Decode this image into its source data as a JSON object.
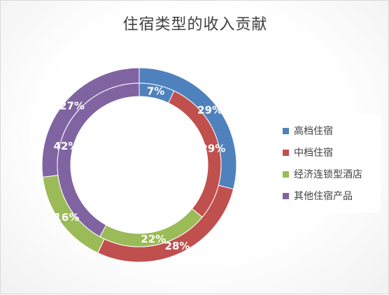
{
  "chart_data": {
    "type": "donut",
    "title": "住宿类型的收入贡献",
    "categories": [
      "高档住宿",
      "中档住宿",
      "经济连锁型酒店",
      "其他住宿产品"
    ],
    "colors": [
      "#4f81bd",
      "#c0504d",
      "#9bbb59",
      "#8064a2"
    ],
    "series": [
      {
        "ring": "outer",
        "values": [
          29,
          28,
          16,
          27
        ],
        "labels": [
          "29%",
          "28%",
          "16%",
          "27%"
        ]
      },
      {
        "ring": "inner",
        "values": [
          7,
          29,
          22,
          42
        ],
        "labels": [
          "7%",
          "29%",
          "22%",
          "42%"
        ]
      }
    ],
    "legend_position": "right"
  }
}
